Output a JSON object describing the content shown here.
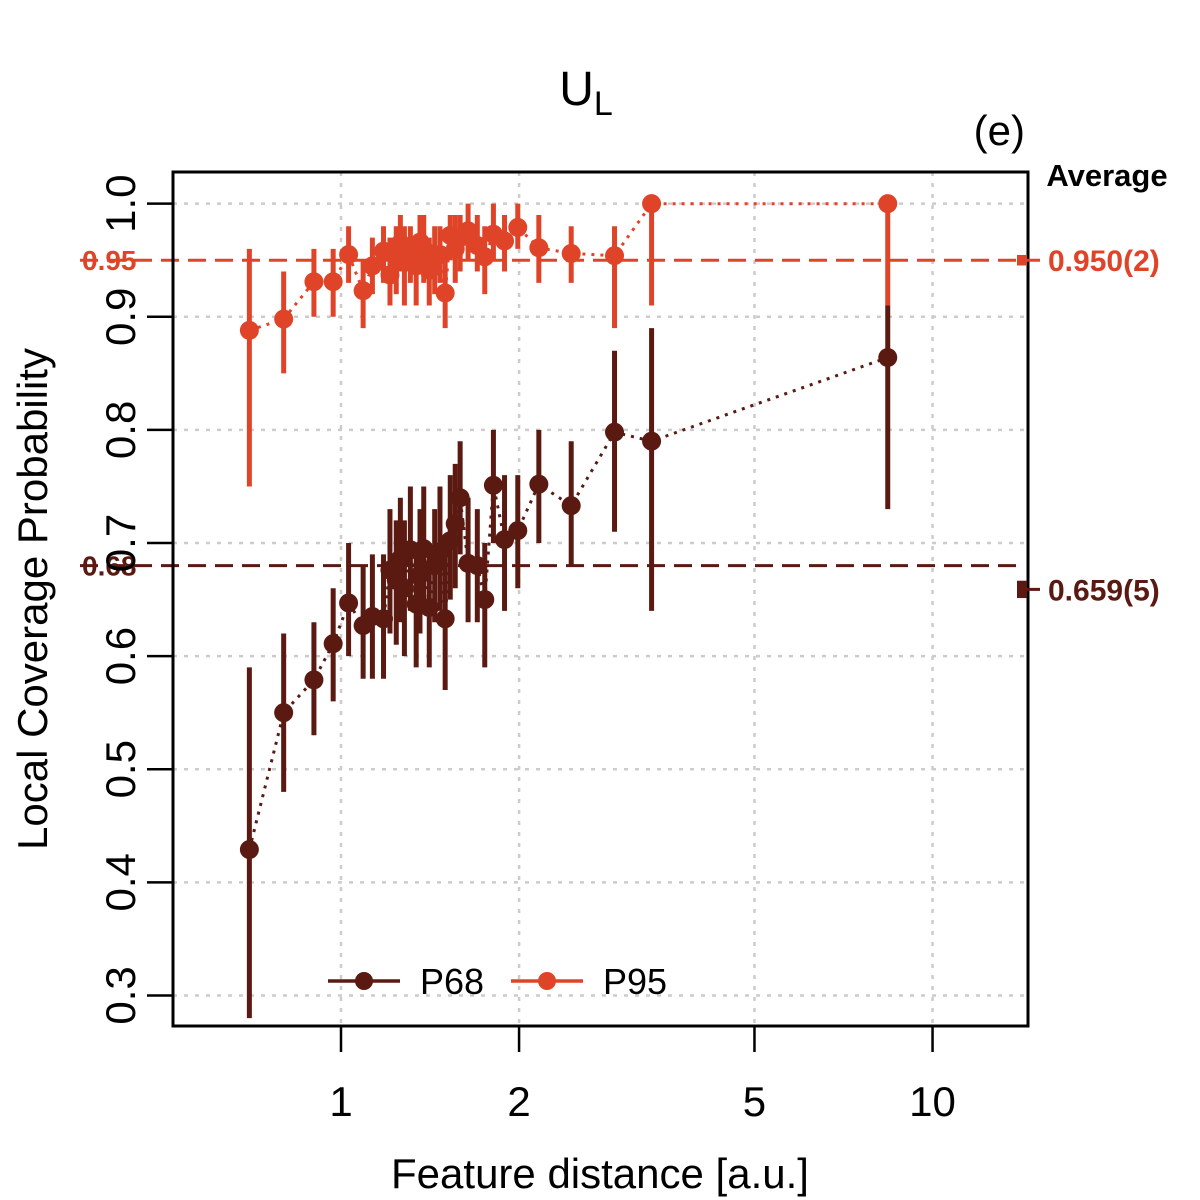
{
  "chart_data": {
    "type": "scatter",
    "title": "U",
    "title_subscript": "L",
    "panel_label": "(e)",
    "xlabel": "Feature distance [a.u.]",
    "ylabel": "Local Coverage Probability",
    "x_scale": "log",
    "xlim": [
      0.52,
      14.5
    ],
    "ylim": [
      0.273,
      1.028
    ],
    "x_ticks": [
      1,
      2,
      5,
      10
    ],
    "x_tick_labels": [
      "1",
      "2",
      "5",
      "10"
    ],
    "y_ticks": [
      0.3,
      0.4,
      0.5,
      0.6,
      0.7,
      0.8,
      0.9,
      1.0
    ],
    "y_tick_labels": [
      "0.3",
      "0.4",
      "0.5",
      "0.6",
      "0.7",
      "0.8",
      "0.9",
      "1.0"
    ],
    "grid": true,
    "legend_position": "bottom",
    "average_label": "Average",
    "colors": {
      "P68": "#5a1a12",
      "P95": "#e04428",
      "grid": "#cccccc",
      "axis": "#000000"
    },
    "reference_lines": [
      {
        "series": "P68",
        "y": 0.68,
        "label": "0.68"
      },
      {
        "series": "P95",
        "y": 0.95,
        "label": "0.95"
      }
    ],
    "averages": [
      {
        "series": "P68",
        "value": 0.659,
        "label": "0.659(5)",
        "lo": 0.654,
        "hi": 0.664
      },
      {
        "series": "P95",
        "value": 0.95,
        "label": "0.950(2)",
        "lo": 0.948,
        "hi": 0.952
      }
    ],
    "series": [
      {
        "name": "P68",
        "points": [
          {
            "x": 0.7,
            "y": 0.429,
            "lo": 0.28,
            "hi": 0.59
          },
          {
            "x": 0.8,
            "y": 0.55,
            "lo": 0.48,
            "hi": 0.62
          },
          {
            "x": 0.9,
            "y": 0.579,
            "lo": 0.53,
            "hi": 0.63
          },
          {
            "x": 0.97,
            "y": 0.611,
            "lo": 0.56,
            "hi": 0.66
          },
          {
            "x": 1.03,
            "y": 0.647,
            "lo": 0.6,
            "hi": 0.7
          },
          {
            "x": 1.09,
            "y": 0.627,
            "lo": 0.58,
            "hi": 0.68
          },
          {
            "x": 1.13,
            "y": 0.635,
            "lo": 0.58,
            "hi": 0.69
          },
          {
            "x": 1.18,
            "y": 0.633,
            "lo": 0.58,
            "hi": 0.69
          },
          {
            "x": 1.21,
            "y": 0.676,
            "lo": 0.62,
            "hi": 0.73
          },
          {
            "x": 1.24,
            "y": 0.667,
            "lo": 0.61,
            "hi": 0.72
          },
          {
            "x": 1.26,
            "y": 0.686,
            "lo": 0.63,
            "hi": 0.74
          },
          {
            "x": 1.28,
            "y": 0.66,
            "lo": 0.6,
            "hi": 0.72
          },
          {
            "x": 1.31,
            "y": 0.694,
            "lo": 0.64,
            "hi": 0.75
          },
          {
            "x": 1.34,
            "y": 0.646,
            "lo": 0.59,
            "hi": 0.7
          },
          {
            "x": 1.36,
            "y": 0.672,
            "lo": 0.62,
            "hi": 0.73
          },
          {
            "x": 1.38,
            "y": 0.695,
            "lo": 0.64,
            "hi": 0.75
          },
          {
            "x": 1.41,
            "y": 0.643,
            "lo": 0.59,
            "hi": 0.7
          },
          {
            "x": 1.44,
            "y": 0.68,
            "lo": 0.63,
            "hi": 0.73
          },
          {
            "x": 1.47,
            "y": 0.692,
            "lo": 0.64,
            "hi": 0.75
          },
          {
            "x": 1.5,
            "y": 0.633,
            "lo": 0.57,
            "hi": 0.69
          },
          {
            "x": 1.53,
            "y": 0.702,
            "lo": 0.65,
            "hi": 0.76
          },
          {
            "x": 1.56,
            "y": 0.717,
            "lo": 0.66,
            "hi": 0.77
          },
          {
            "x": 1.59,
            "y": 0.74,
            "lo": 0.69,
            "hi": 0.79
          },
          {
            "x": 1.64,
            "y": 0.682,
            "lo": 0.63,
            "hi": 0.74
          },
          {
            "x": 1.7,
            "y": 0.68,
            "lo": 0.63,
            "hi": 0.73
          },
          {
            "x": 1.75,
            "y": 0.65,
            "lo": 0.59,
            "hi": 0.7
          },
          {
            "x": 1.81,
            "y": 0.751,
            "lo": 0.7,
            "hi": 0.8
          },
          {
            "x": 1.89,
            "y": 0.703,
            "lo": 0.64,
            "hi": 0.76
          },
          {
            "x": 1.99,
            "y": 0.711,
            "lo": 0.66,
            "hi": 0.76
          },
          {
            "x": 2.16,
            "y": 0.752,
            "lo": 0.7,
            "hi": 0.8
          },
          {
            "x": 2.45,
            "y": 0.733,
            "lo": 0.68,
            "hi": 0.79
          },
          {
            "x": 2.9,
            "y": 0.798,
            "lo": 0.71,
            "hi": 0.87
          },
          {
            "x": 3.35,
            "y": 0.79,
            "lo": 0.64,
            "hi": 0.89
          },
          {
            "x": 8.4,
            "y": 0.864,
            "lo": 0.73,
            "hi": 0.91
          }
        ]
      },
      {
        "name": "P95",
        "points": [
          {
            "x": 0.7,
            "y": 0.888,
            "lo": 0.75,
            "hi": 0.96
          },
          {
            "x": 0.8,
            "y": 0.898,
            "lo": 0.85,
            "hi": 0.94
          },
          {
            "x": 0.9,
            "y": 0.931,
            "lo": 0.9,
            "hi": 0.96
          },
          {
            "x": 0.97,
            "y": 0.931,
            "lo": 0.9,
            "hi": 0.96
          },
          {
            "x": 1.03,
            "y": 0.955,
            "lo": 0.93,
            "hi": 0.98
          },
          {
            "x": 1.09,
            "y": 0.923,
            "lo": 0.89,
            "hi": 0.95
          },
          {
            "x": 1.13,
            "y": 0.945,
            "lo": 0.92,
            "hi": 0.97
          },
          {
            "x": 1.18,
            "y": 0.958,
            "lo": 0.93,
            "hi": 0.98
          },
          {
            "x": 1.21,
            "y": 0.937,
            "lo": 0.91,
            "hi": 0.97
          },
          {
            "x": 1.24,
            "y": 0.953,
            "lo": 0.92,
            "hi": 0.98
          },
          {
            "x": 1.26,
            "y": 0.965,
            "lo": 0.94,
            "hi": 0.99
          },
          {
            "x": 1.28,
            "y": 0.948,
            "lo": 0.91,
            "hi": 0.98
          },
          {
            "x": 1.31,
            "y": 0.958,
            "lo": 0.93,
            "hi": 0.98
          },
          {
            "x": 1.34,
            "y": 0.945,
            "lo": 0.91,
            "hi": 0.97
          },
          {
            "x": 1.36,
            "y": 0.966,
            "lo": 0.94,
            "hi": 0.99
          },
          {
            "x": 1.38,
            "y": 0.96,
            "lo": 0.93,
            "hi": 0.99
          },
          {
            "x": 1.41,
            "y": 0.941,
            "lo": 0.91,
            "hi": 0.97
          },
          {
            "x": 1.44,
            "y": 0.952,
            "lo": 0.92,
            "hi": 0.98
          },
          {
            "x": 1.47,
            "y": 0.955,
            "lo": 0.93,
            "hi": 0.98
          },
          {
            "x": 1.5,
            "y": 0.921,
            "lo": 0.89,
            "hi": 0.95
          },
          {
            "x": 1.53,
            "y": 0.972,
            "lo": 0.95,
            "hi": 0.99
          },
          {
            "x": 1.56,
            "y": 0.96,
            "lo": 0.93,
            "hi": 0.99
          },
          {
            "x": 1.59,
            "y": 0.97,
            "lo": 0.94,
            "hi": 0.99
          },
          {
            "x": 1.64,
            "y": 0.976,
            "lo": 0.95,
            "hi": 1.0
          },
          {
            "x": 1.7,
            "y": 0.963,
            "lo": 0.94,
            "hi": 0.99
          },
          {
            "x": 1.75,
            "y": 0.953,
            "lo": 0.92,
            "hi": 0.98
          },
          {
            "x": 1.81,
            "y": 0.973,
            "lo": 0.95,
            "hi": 1.0
          },
          {
            "x": 1.89,
            "y": 0.967,
            "lo": 0.94,
            "hi": 0.99
          },
          {
            "x": 1.99,
            "y": 0.979,
            "lo": 0.96,
            "hi": 1.0
          },
          {
            "x": 2.16,
            "y": 0.961,
            "lo": 0.93,
            "hi": 0.99
          },
          {
            "x": 2.45,
            "y": 0.956,
            "lo": 0.93,
            "hi": 0.98
          },
          {
            "x": 2.9,
            "y": 0.954,
            "lo": 0.89,
            "hi": 0.98
          },
          {
            "x": 3.35,
            "y": 1.0,
            "lo": 0.91,
            "hi": 1.0
          },
          {
            "x": 8.4,
            "y": 1.0,
            "lo": 0.91,
            "hi": 1.0
          }
        ]
      }
    ]
  }
}
